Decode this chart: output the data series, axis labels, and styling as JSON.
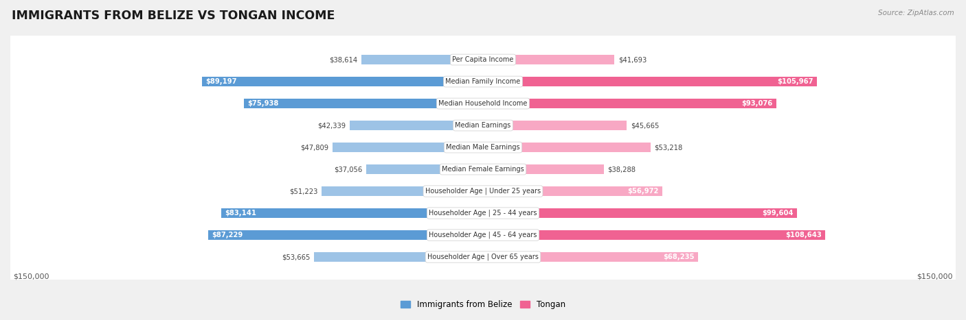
{
  "title": "IMMIGRANTS FROM BELIZE VS TONGAN INCOME",
  "source": "Source: ZipAtlas.com",
  "categories": [
    "Per Capita Income",
    "Median Family Income",
    "Median Household Income",
    "Median Earnings",
    "Median Male Earnings",
    "Median Female Earnings",
    "Householder Age | Under 25 years",
    "Householder Age | 25 - 44 years",
    "Householder Age | 45 - 64 years",
    "Householder Age | Over 65 years"
  ],
  "belize_values": [
    38614,
    89197,
    75938,
    42339,
    47809,
    37056,
    51223,
    83141,
    87229,
    53665
  ],
  "tongan_values": [
    41693,
    105967,
    93076,
    45665,
    53218,
    38288,
    56972,
    99604,
    108643,
    68235
  ],
  "belize_labels": [
    "$38,614",
    "$89,197",
    "$75,938",
    "$42,339",
    "$47,809",
    "$37,056",
    "$51,223",
    "$83,141",
    "$87,229",
    "$53,665"
  ],
  "tongan_labels": [
    "$41,693",
    "$105,967",
    "$93,076",
    "$45,665",
    "$53,218",
    "$38,288",
    "$56,972",
    "$99,604",
    "$108,643",
    "$68,235"
  ],
  "belize_strong_threshold": 70000,
  "tongan_strong_threshold": 90000,
  "belize_color_strong": "#5b9bd5",
  "belize_color_light": "#9dc3e6",
  "tongan_color_strong": "#f06292",
  "tongan_color_light": "#f8a8c4",
  "inside_label_threshold": 55000,
  "max_value": 150000,
  "background_color": "#f0f0f0",
  "row_bg_color": "#ffffff",
  "row_border_color": "#cccccc",
  "legend_belize": "Immigrants from Belize",
  "legend_tongan": "Tongan",
  "figsize": [
    14.06,
    4.67
  ],
  "dpi": 100
}
